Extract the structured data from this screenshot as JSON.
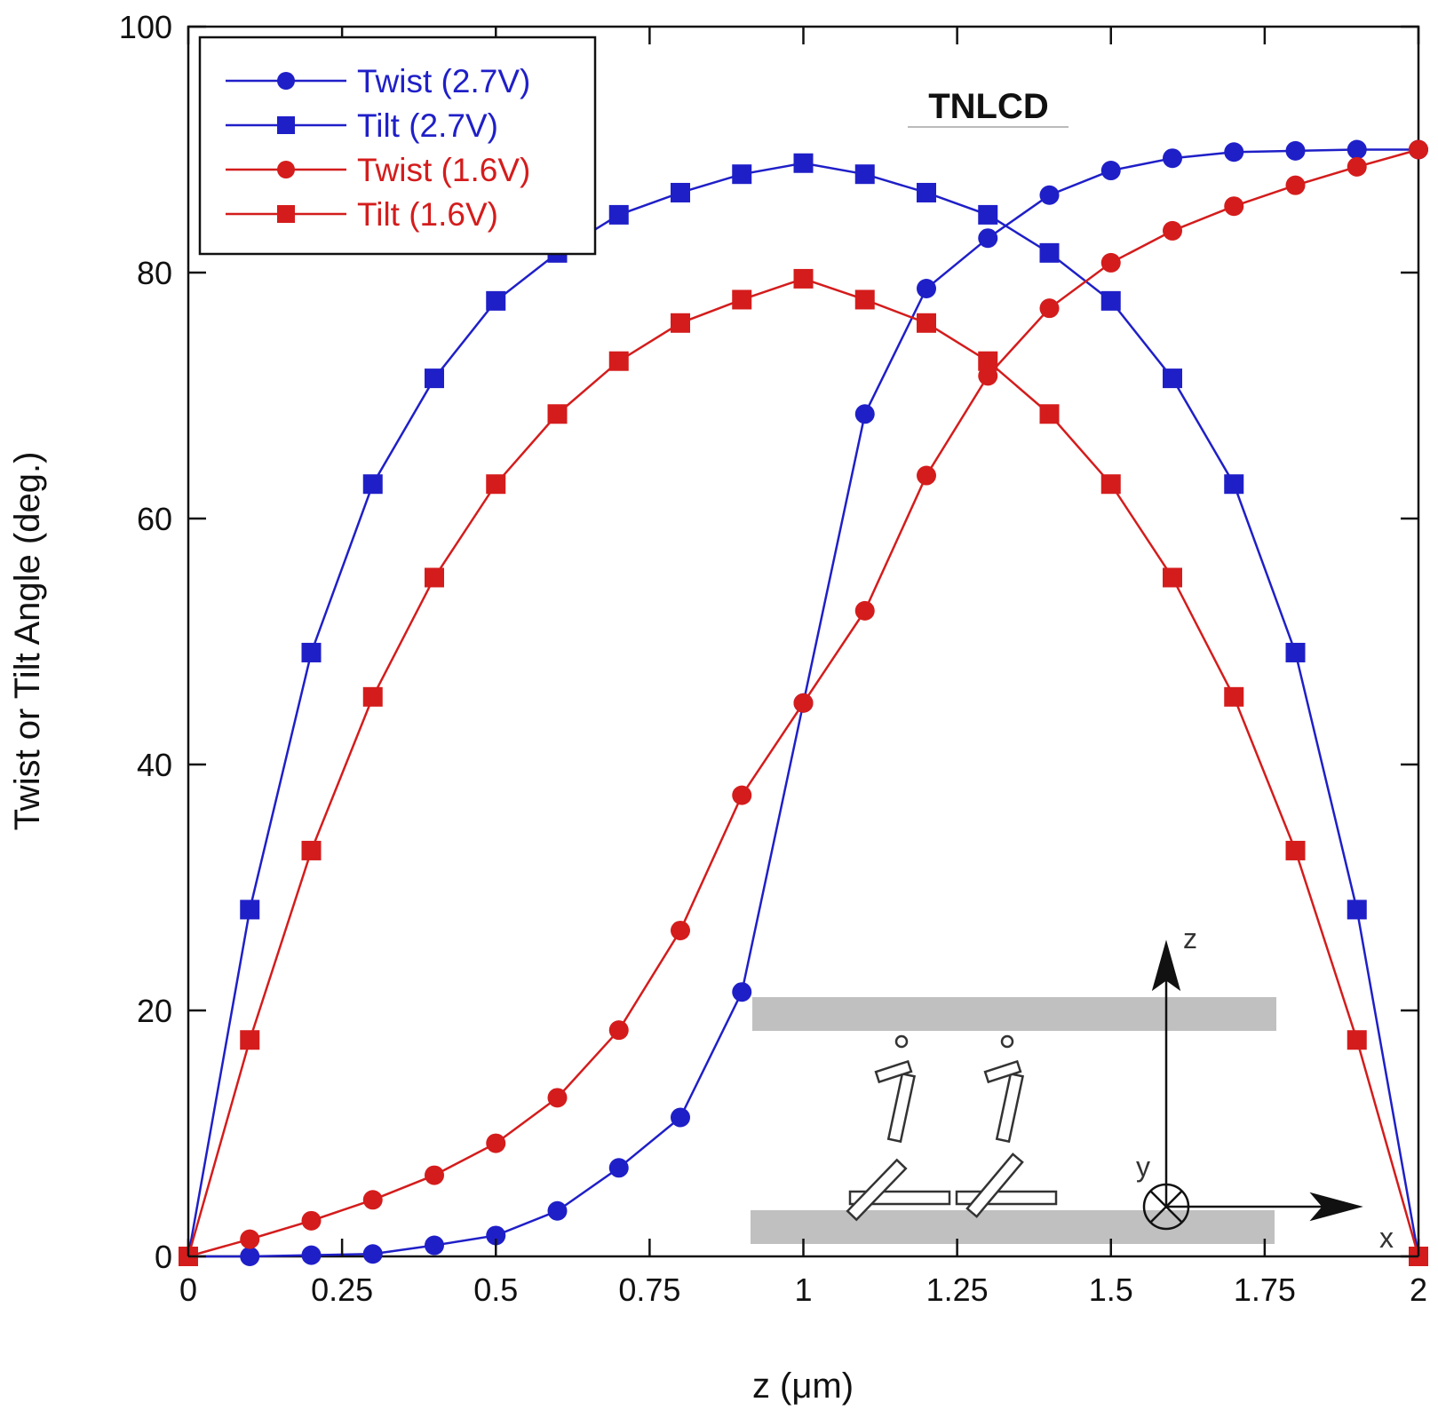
{
  "chart_data": {
    "type": "line",
    "title": "",
    "annotation": "TNLCD",
    "xlabel": "z  (μm)",
    "ylabel": "Twist or Tilt Angle (deg.)",
    "xlim": [
      0,
      2
    ],
    "ylim": [
      0,
      100
    ],
    "x_ticks": [
      0,
      0.25,
      0.5,
      0.75,
      1,
      1.25,
      1.5,
      1.75,
      2
    ],
    "x_tick_labels": [
      "0",
      "0.25",
      "0.5",
      "0.75",
      "1",
      "1.25",
      "1.5",
      "1.75",
      "2"
    ],
    "y_ticks": [
      0,
      20,
      40,
      60,
      80,
      100
    ],
    "y_tick_labels": [
      "0",
      "20",
      "40",
      "60",
      "80",
      "100"
    ],
    "grid": false,
    "legend_position": "top-left",
    "x": [
      0,
      0.1,
      0.2,
      0.3,
      0.4,
      0.5,
      0.6,
      0.7,
      0.8,
      0.9,
      1.0,
      1.1,
      1.2,
      1.3,
      1.4,
      1.5,
      1.6,
      1.7,
      1.8,
      1.9,
      2.0
    ],
    "series": [
      {
        "name": "Twist (2.7V)",
        "color": "#1f1fc8",
        "marker": "circle",
        "values": [
          0,
          0,
          0.1,
          0.2,
          0.9,
          1.7,
          3.7,
          7.2,
          11.3,
          21.5,
          45,
          68.5,
          78.7,
          82.8,
          86.3,
          88.3,
          89.3,
          89.8,
          89.9,
          90,
          90
        ]
      },
      {
        "name": "Tilt (2.7V)",
        "color": "#1f1fc8",
        "marker": "square",
        "values": [
          0,
          28.2,
          49.1,
          62.8,
          71.4,
          77.7,
          81.6,
          84.7,
          86.5,
          88.0,
          88.9,
          88.0,
          86.5,
          84.7,
          81.6,
          77.7,
          71.4,
          62.8,
          49.1,
          28.2,
          0
        ]
      },
      {
        "name": "Twist (1.6V)",
        "color": "#d41c1c",
        "marker": "circle",
        "values": [
          0,
          1.4,
          2.9,
          4.6,
          6.6,
          9.2,
          12.9,
          18.4,
          26.5,
          37.5,
          45,
          52.5,
          63.5,
          71.6,
          77.1,
          80.8,
          83.4,
          85.4,
          87.1,
          88.6,
          90
        ]
      },
      {
        "name": "Tilt (1.6V)",
        "color": "#d41c1c",
        "marker": "square",
        "values": [
          0,
          17.6,
          33.0,
          45.5,
          55.2,
          62.8,
          68.5,
          72.8,
          75.9,
          77.8,
          79.5,
          77.8,
          75.9,
          72.8,
          68.5,
          62.8,
          55.2,
          45.5,
          33.0,
          17.6,
          0
        ]
      }
    ],
    "inset_diagram": {
      "axis_labels": [
        "z",
        "y",
        "x"
      ]
    }
  }
}
